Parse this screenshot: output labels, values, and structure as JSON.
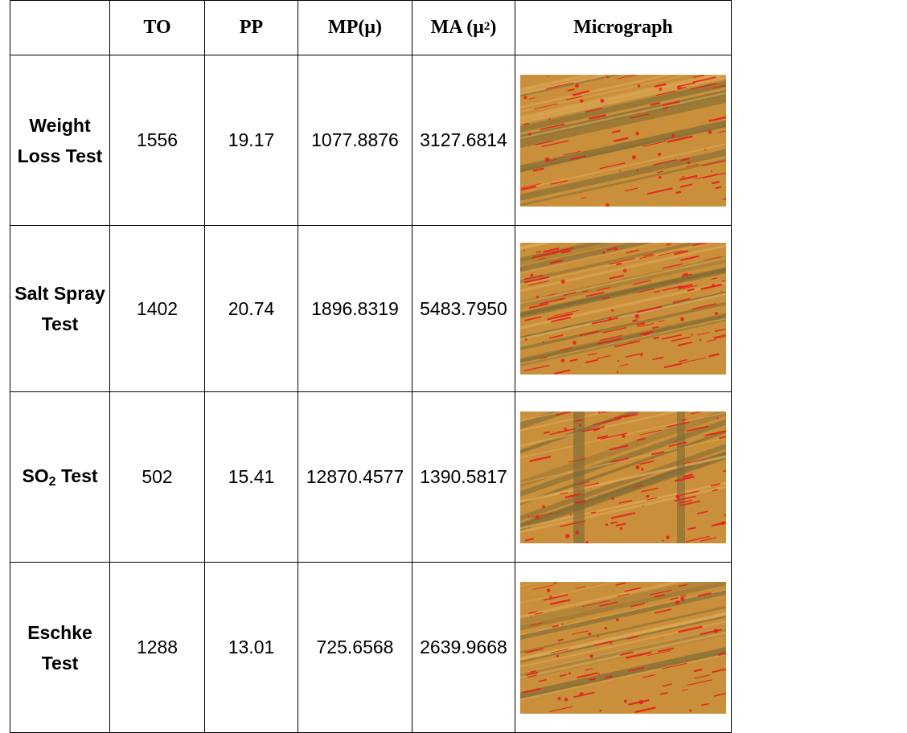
{
  "header": {
    "col_blank": "",
    "to": "TO",
    "pp": "PP",
    "mp_base": "MP(μ)",
    "ma_base": "MA (μ",
    "ma_sup": "2",
    "ma_close": ")",
    "micrograph": "Micrograph"
  },
  "rows": [
    {
      "label_line1": "Weight",
      "label_line2": "Loss Test",
      "to": "1556",
      "pp": "19.17",
      "mp": "1077.8876",
      "ma": "3127.6814",
      "micrograph_icon": "micrograph-image"
    },
    {
      "label_line1": "Salt Spray",
      "label_line2": "Test",
      "to": "1402",
      "pp": "20.74",
      "mp": "1896.8319",
      "ma": "5483.7950",
      "micrograph_icon": "micrograph-image"
    },
    {
      "label_base": "SO",
      "label_sub": "2",
      "label_rest": " Test",
      "to": "502",
      "pp": "15.41",
      "mp": "12870.4577",
      "ma": "1390.5817",
      "micrograph_icon": "micrograph-image"
    },
    {
      "label_line1": "Eschke",
      "label_line2": "Test",
      "to": "1288",
      "pp": "13.01",
      "mp": "725.6568",
      "ma": "2639.9668",
      "micrograph_icon": "micrograph-image"
    }
  ],
  "colors": {
    "micrograph_base": "#c98f3a",
    "micrograph_dark": "#7e6a35",
    "micrograph_marks": "#e8201a"
  }
}
